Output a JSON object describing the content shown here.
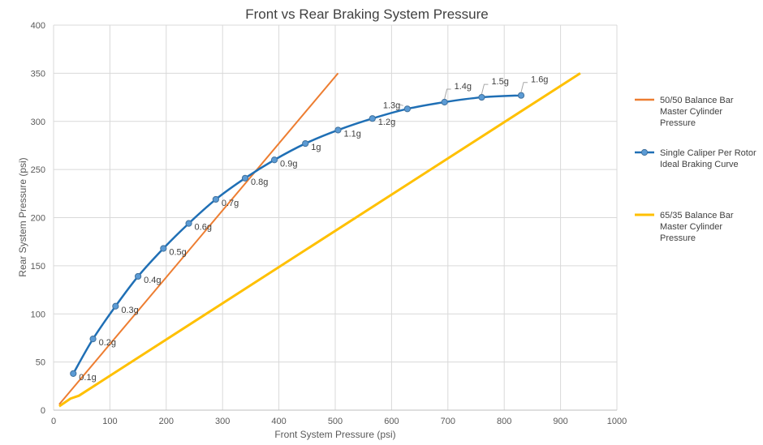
{
  "chart_data": {
    "type": "line",
    "title": "Front vs Rear Braking System Pressure",
    "xlabel": "Front System Pressure (psi)",
    "ylabel": "Rear System Pressure (psi)",
    "xlim": [
      0,
      1000
    ],
    "ylim": [
      0,
      400
    ],
    "xticks": [
      "0",
      "100",
      "200",
      "300",
      "400",
      "500",
      "600",
      "700",
      "800",
      "900",
      "1000"
    ],
    "yticks": [
      "0",
      "50",
      "100",
      "150",
      "200",
      "250",
      "300",
      "350",
      "400"
    ],
    "grid": true,
    "legend_position": "right",
    "series": [
      {
        "name": "50/50 Balance Bar Master Cylinder Pressure",
        "legend_lines": [
          "50/50 Balance Bar",
          "Master Cylinder",
          "Pressure"
        ],
        "color": "#ED7D31",
        "markers": false,
        "x": [
          10,
          505
        ],
        "y": [
          6,
          350
        ]
      },
      {
        "name": "Single Caliper Per Rotor Ideal Braking Curve",
        "legend_lines": [
          "Single Caliper Per Rotor",
          "Ideal Braking Curve"
        ],
        "color": "#1F6FB5",
        "marker_fill": "#5B9BD5",
        "markers": true,
        "x": [
          35,
          70,
          110,
          150,
          195,
          240,
          288,
          340,
          392,
          447,
          505,
          566,
          628,
          694,
          760,
          830
        ],
        "y": [
          38,
          74,
          108,
          139,
          168,
          194,
          219,
          241,
          260,
          277,
          291,
          303,
          313,
          320,
          325,
          327
        ],
        "point_labels": [
          "0.1g",
          "0.2g",
          "0.3g",
          "0.4g",
          "0.5g",
          "0.6g",
          "0.7g",
          "0.8g",
          "0.9g",
          "1g",
          "1.1g",
          "1.2g",
          "1.3g",
          "1.4g",
          "1.5g",
          "1.6g"
        ]
      },
      {
        "name": "65/35 Balance Bar Master Cylinder Pressure",
        "legend_lines": [
          "65/35 Balance Bar",
          "Master Cylinder",
          "Pressure"
        ],
        "color": "#FFC000",
        "markers": false,
        "x": [
          10,
          20,
          30,
          45,
          935
        ],
        "y": [
          4,
          8,
          12,
          15,
          350
        ]
      }
    ]
  }
}
